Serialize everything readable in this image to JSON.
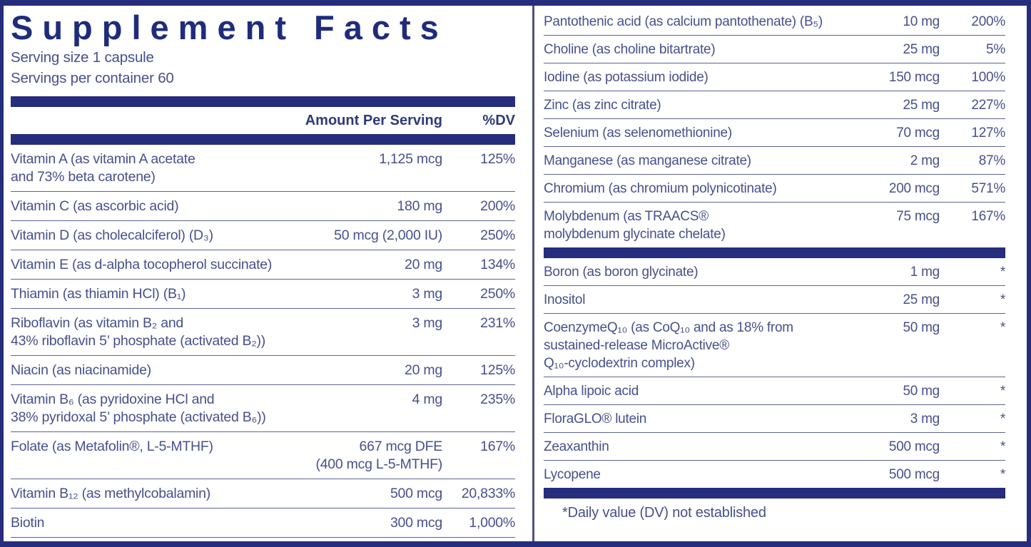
{
  "colors": {
    "navy_bar": "#262d7d",
    "title_navy": "#1f2c7c",
    "body_text": "#46508b",
    "separator_line": "#5d6394",
    "background": "#ffffff"
  },
  "header": {
    "title": "Supplement Facts",
    "serving_size": "Serving size  1 capsule",
    "servings_per_container": "Servings per container  60",
    "amount_header": "Amount Per Serving",
    "dv_header": "%DV"
  },
  "left_rows": [
    {
      "name": "Vitamin A (as vitamin A acetate\nand 73% beta carotene)",
      "amount": "1,125 mcg",
      "dv": "125%"
    },
    {
      "name": "Vitamin C (as ascorbic acid)",
      "amount": "180 mg",
      "dv": "200%"
    },
    {
      "name": "Vitamin D (as cholecalciferol) (D₃)",
      "amount": "50 mcg (2,000 IU)",
      "dv": "250%"
    },
    {
      "name": "Vitamin E (as d-alpha tocopherol succinate)",
      "amount": "20 mg",
      "dv": "134%"
    },
    {
      "name": "Thiamin (as thiamin HCl) (B₁)",
      "amount": "3 mg",
      "dv": "250%"
    },
    {
      "name": "Riboflavin (as vitamin B₂ and\n43% riboflavin 5’ phosphate (activated B₂))",
      "amount": "3 mg",
      "dv": "231%"
    },
    {
      "name": "Niacin (as niacinamide)",
      "amount": "20 mg",
      "dv": "125%"
    },
    {
      "name": "Vitamin B₆ (as pyridoxine HCl and\n38% pyridoxal 5’ phosphate (activated B₆))",
      "amount": "4 mg",
      "dv": "235%"
    },
    {
      "name": "Folate (as Metafolin®, L-5-MTHF)",
      "amount": "667 mcg DFE\n(400 mcg L-5-MTHF)",
      "dv": "167%"
    },
    {
      "name": "Vitamin B₁₂ (as methylcobalamin)",
      "amount": "500 mcg",
      "dv": "20,833%"
    },
    {
      "name": "Biotin",
      "amount": "300 mcg",
      "dv": "1,000%"
    }
  ],
  "right_rows_top": [
    {
      "name": "Pantothenic acid (as calcium pantothenate) (B₅)",
      "amount": "10 mg",
      "dv": "200%"
    },
    {
      "name": "Choline (as choline bitartrate)",
      "amount": "25 mg",
      "dv": "5%"
    },
    {
      "name": "Iodine (as potassium iodide)",
      "amount": "150 mcg",
      "dv": "100%"
    },
    {
      "name": "Zinc (as zinc citrate)",
      "amount": "25 mg",
      "dv": "227%"
    },
    {
      "name": "Selenium (as selenomethionine)",
      "amount": "70 mcg",
      "dv": "127%"
    },
    {
      "name": "Manganese (as manganese citrate)",
      "amount": "2 mg",
      "dv": "87%"
    },
    {
      "name": "Chromium (as chromium polynicotinate)",
      "amount": "200 mcg",
      "dv": "571%"
    },
    {
      "name": "Molybdenum (as TRAACS®\nmolybdenum glycinate chelate)",
      "amount": "75 mcg",
      "dv": "167%"
    }
  ],
  "right_rows_bottom": [
    {
      "name": "Boron (as boron glycinate)",
      "amount": "1 mg",
      "dv": "*"
    },
    {
      "name": "Inositol",
      "amount": "25 mg",
      "dv": "*"
    },
    {
      "name": "CoenzymeQ₁₀ (as CoQ₁₀ and as 18% from\nsustained-release MicroActive®\nQ₁₀-cyclodextrin complex)",
      "amount": "50 mg",
      "dv": "*"
    },
    {
      "name": "Alpha lipoic acid",
      "amount": "50 mg",
      "dv": "*"
    },
    {
      "name": "FloraGLO® lutein",
      "amount": "3 mg",
      "dv": "*"
    },
    {
      "name": "Zeaxanthin",
      "amount": "500 mcg",
      "dv": "*"
    },
    {
      "name": "Lycopene",
      "amount": "500 mcg",
      "dv": "*"
    }
  ],
  "footnote": "*Daily value (DV) not established"
}
